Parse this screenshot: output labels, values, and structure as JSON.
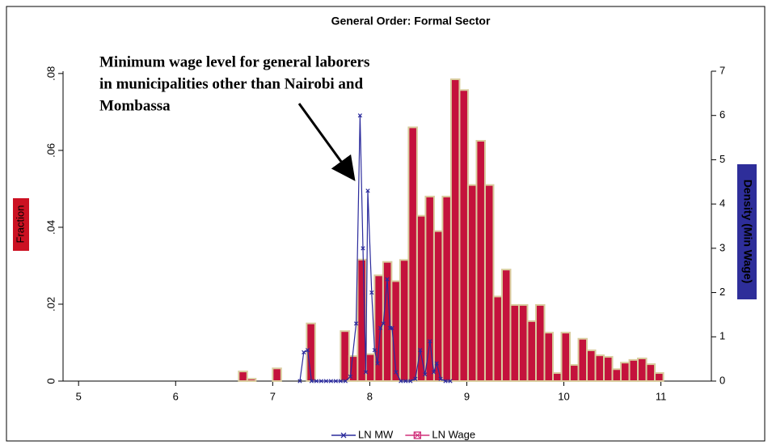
{
  "chart_data": {
    "type": "histogram",
    "title": "General Order: Formal Sector",
    "ylabel": "Fraction",
    "y2label": "Density (Min Wage)",
    "annotation": [
      "Minimum wage level for general laborers",
      "in municipalities other than Nairobi and",
      "Mombassa"
    ],
    "xlim": [
      4.84,
      11.52
    ],
    "xticks": [
      5,
      6,
      7,
      8,
      9,
      10,
      11
    ],
    "ylim": [
      0,
      0.0806
    ],
    "yticks": [
      0,
      {
        "value": 0.02,
        "label": ".02"
      },
      {
        "value": 0.04,
        "label": ".04"
      },
      {
        "value": 0.06,
        "label": ".06"
      },
      {
        "value": 0.08,
        "label": ".08"
      }
    ],
    "y2lim": [
      0,
      7
    ],
    "y2ticks": [
      0,
      1,
      2,
      3,
      4,
      5,
      6,
      7
    ],
    "grid": false,
    "legend": "bottom",
    "bins": [
      6.65,
      6.7375,
      6.825,
      6.9125,
      7.0,
      7.0875,
      7.175,
      7.2625,
      7.35,
      7.4375,
      7.525,
      7.6125,
      7.7,
      7.7875,
      7.875,
      7.9625,
      8.05,
      8.1375,
      8.225,
      8.3125,
      8.4,
      8.4875,
      8.575,
      8.6625,
      8.75,
      8.8375,
      8.925,
      9.0125,
      9.1,
      9.1875,
      9.275,
      9.3625,
      9.45,
      9.5375,
      9.625,
      9.7125,
      9.8,
      9.8875,
      9.975,
      10.0625,
      10.15,
      10.2375,
      10.325,
      10.4125,
      10.5,
      10.5875,
      10.675,
      10.7625,
      10.85,
      10.9375,
      11.025
    ],
    "series": [
      {
        "name": "LN MW",
        "type": "line",
        "axis": "y2",
        "color": "#2b2b9c",
        "x": [
          7.28,
          7.32,
          7.36,
          7.4,
          7.45,
          7.5,
          7.55,
          7.6,
          7.65,
          7.7,
          7.75,
          7.8,
          7.86,
          7.9,
          7.93,
          7.96,
          7.98,
          8.02,
          8.05,
          8.08,
          8.11,
          8.14,
          8.18,
          8.21,
          8.23,
          8.27,
          8.32,
          8.37,
          8.42,
          8.47,
          8.52,
          8.57,
          8.62,
          8.66,
          8.69,
          8.73,
          8.78,
          8.83
        ],
        "values": [
          0,
          0.65,
          0.7,
          0,
          0,
          0,
          0,
          0,
          0,
          0,
          0,
          0.1,
          1.3,
          6,
          3,
          0.2,
          4.3,
          2,
          0.7,
          0.4,
          1.2,
          1.3,
          2.3,
          1.2,
          1.2,
          0.2,
          0,
          0,
          0,
          0.05,
          0.7,
          0.15,
          0.9,
          0.2,
          0.4,
          0.05,
          0,
          0
        ]
      },
      {
        "name": "LN Wage",
        "type": "histogram",
        "color": "#c4123c",
        "edge_color": "#d9cc9e",
        "legend_color": "#d0307a",
        "values": [
          0.0025,
          0.0006,
          0,
          0,
          0.0033,
          0,
          0,
          0,
          0.015,
          0,
          0,
          0,
          0.013,
          0.0065,
          0.0316,
          0.007,
          0.0275,
          0.031,
          0.026,
          0.0315,
          0.066,
          0.043,
          0.048,
          0.039,
          0.048,
          0.0785,
          0.0757,
          0.051,
          0.0625,
          0.051,
          0.022,
          0.029,
          0.0198,
          0.0198,
          0.0156,
          0.0198,
          0.0126,
          0.0021,
          0.0126,
          0.0042,
          0.011,
          0.008,
          0.0067,
          0.0063,
          0.0031,
          0.0048,
          0.0055,
          0.0059,
          0.0044,
          0.0021
        ]
      }
    ]
  }
}
